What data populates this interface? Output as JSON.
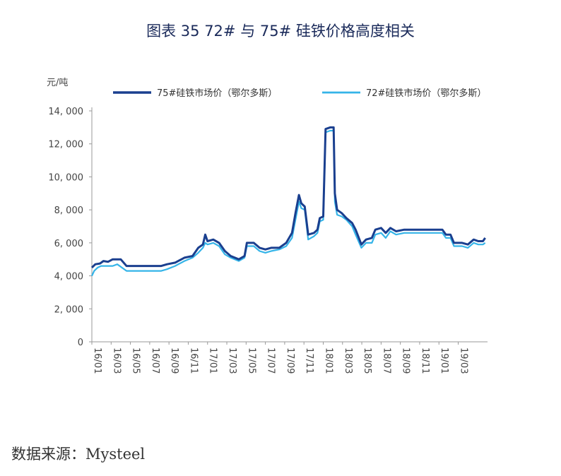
{
  "title": "图表 35   72# 与 75# 硅铁价格高度相关",
  "source": "数据来源：Mysteel",
  "colors": {
    "series_75": "#1a3f8f",
    "series_72": "#35b4e8",
    "axis": "#999999"
  },
  "chart_data": {
    "type": "line",
    "ylabel": "元/吨",
    "ylim": [
      0,
      14000
    ],
    "yticks": [
      0,
      2000,
      4000,
      6000,
      8000,
      10000,
      12000,
      14000
    ],
    "ytick_labels": [
      "0",
      "2, 000",
      "4, 000",
      "6, 000",
      "8, 000",
      "10, 000",
      "12, 000",
      "14, 000"
    ],
    "xtick_labels": [
      "16/01",
      "16/03",
      "16/05",
      "16/07",
      "16/09",
      "16/11",
      "17/01",
      "17/03",
      "17/05",
      "17/07",
      "17/09",
      "17/11",
      "18/01",
      "18/03",
      "18/05",
      "18/07",
      "18/09",
      "18/11",
      "19/01",
      "19/03"
    ],
    "x_range": [
      2016.0,
      2019.42
    ],
    "legend_position": "top",
    "series": [
      {
        "name": "75#硅铁市场价（鄂尔多斯）",
        "points": [
          [
            2016.0,
            4500
          ],
          [
            2016.03,
            4700
          ],
          [
            2016.07,
            4750
          ],
          [
            2016.1,
            4900
          ],
          [
            2016.14,
            4850
          ],
          [
            2016.18,
            5000
          ],
          [
            2016.25,
            5000
          ],
          [
            2016.3,
            4600
          ],
          [
            2016.5,
            4600
          ],
          [
            2016.6,
            4600
          ],
          [
            2016.65,
            4700
          ],
          [
            2016.72,
            4800
          ],
          [
            2016.8,
            5100
          ],
          [
            2016.87,
            5200
          ],
          [
            2016.92,
            5700
          ],
          [
            2016.96,
            5900
          ],
          [
            2016.98,
            6500
          ],
          [
            2017.0,
            6100
          ],
          [
            2017.05,
            6200
          ],
          [
            2017.1,
            6000
          ],
          [
            2017.15,
            5500
          ],
          [
            2017.2,
            5200
          ],
          [
            2017.27,
            5000
          ],
          [
            2017.32,
            5200
          ],
          [
            2017.34,
            6000
          ],
          [
            2017.4,
            6000
          ],
          [
            2017.45,
            5700
          ],
          [
            2017.5,
            5600
          ],
          [
            2017.55,
            5700
          ],
          [
            2017.62,
            5700
          ],
          [
            2017.68,
            6000
          ],
          [
            2017.73,
            6600
          ],
          [
            2017.76,
            7800
          ],
          [
            2017.79,
            8900
          ],
          [
            2017.81,
            8400
          ],
          [
            2017.84,
            8200
          ],
          [
            2017.87,
            6500
          ],
          [
            2017.92,
            6600
          ],
          [
            2017.95,
            6800
          ],
          [
            2017.97,
            7500
          ],
          [
            2018.0,
            7600
          ],
          [
            2018.02,
            12900
          ],
          [
            2018.06,
            13000
          ],
          [
            2018.09,
            13000
          ],
          [
            2018.1,
            9000
          ],
          [
            2018.12,
            8000
          ],
          [
            2018.16,
            7800
          ],
          [
            2018.2,
            7500
          ],
          [
            2018.25,
            7200
          ],
          [
            2018.28,
            6800
          ],
          [
            2018.33,
            5900
          ],
          [
            2018.37,
            6200
          ],
          [
            2018.42,
            6300
          ],
          [
            2018.45,
            6800
          ],
          [
            2018.5,
            6900
          ],
          [
            2018.54,
            6600
          ],
          [
            2018.58,
            6900
          ],
          [
            2018.63,
            6700
          ],
          [
            2018.7,
            6800
          ],
          [
            2018.8,
            6800
          ],
          [
            2018.9,
            6800
          ],
          [
            2019.0,
            6800
          ],
          [
            2019.03,
            6800
          ],
          [
            2019.06,
            6500
          ],
          [
            2019.1,
            6500
          ],
          [
            2019.13,
            6000
          ],
          [
            2019.2,
            6000
          ],
          [
            2019.25,
            5900
          ],
          [
            2019.3,
            6200
          ],
          [
            2019.34,
            6100
          ],
          [
            2019.38,
            6100
          ],
          [
            2019.4,
            6300
          ]
        ]
      },
      {
        "name": "72#硅铁市场价（鄂尔多斯）",
        "points": [
          [
            2016.0,
            4000
          ],
          [
            2016.02,
            4300
          ],
          [
            2016.05,
            4500
          ],
          [
            2016.08,
            4600
          ],
          [
            2016.12,
            4600
          ],
          [
            2016.18,
            4600
          ],
          [
            2016.22,
            4700
          ],
          [
            2016.3,
            4300
          ],
          [
            2016.5,
            4300
          ],
          [
            2016.6,
            4300
          ],
          [
            2016.65,
            4400
          ],
          [
            2016.72,
            4600
          ],
          [
            2016.8,
            4900
          ],
          [
            2016.87,
            5100
          ],
          [
            2016.92,
            5400
          ],
          [
            2016.96,
            5700
          ],
          [
            2016.98,
            6000
          ],
          [
            2017.0,
            5900
          ],
          [
            2017.05,
            6000
          ],
          [
            2017.1,
            5800
          ],
          [
            2017.15,
            5300
          ],
          [
            2017.2,
            5100
          ],
          [
            2017.27,
            4900
          ],
          [
            2017.32,
            5100
          ],
          [
            2017.34,
            5800
          ],
          [
            2017.4,
            5800
          ],
          [
            2017.45,
            5500
          ],
          [
            2017.5,
            5400
          ],
          [
            2017.55,
            5500
          ],
          [
            2017.62,
            5600
          ],
          [
            2017.68,
            5800
          ],
          [
            2017.73,
            6300
          ],
          [
            2017.76,
            7400
          ],
          [
            2017.79,
            8500
          ],
          [
            2017.81,
            8100
          ],
          [
            2017.84,
            8000
          ],
          [
            2017.87,
            6200
          ],
          [
            2017.92,
            6400
          ],
          [
            2017.95,
            6600
          ],
          [
            2017.97,
            7300
          ],
          [
            2018.0,
            7400
          ],
          [
            2018.02,
            12700
          ],
          [
            2018.06,
            12800
          ],
          [
            2018.09,
            12800
          ],
          [
            2018.1,
            8500
          ],
          [
            2018.12,
            7700
          ],
          [
            2018.16,
            7600
          ],
          [
            2018.2,
            7400
          ],
          [
            2018.25,
            7000
          ],
          [
            2018.28,
            6500
          ],
          [
            2018.33,
            5700
          ],
          [
            2018.37,
            6000
          ],
          [
            2018.42,
            6000
          ],
          [
            2018.45,
            6500
          ],
          [
            2018.5,
            6600
          ],
          [
            2018.54,
            6300
          ],
          [
            2018.58,
            6700
          ],
          [
            2018.63,
            6500
          ],
          [
            2018.7,
            6600
          ],
          [
            2018.8,
            6600
          ],
          [
            2018.9,
            6600
          ],
          [
            2019.0,
            6600
          ],
          [
            2019.03,
            6600
          ],
          [
            2019.06,
            6300
          ],
          [
            2019.1,
            6300
          ],
          [
            2019.13,
            5800
          ],
          [
            2019.2,
            5800
          ],
          [
            2019.25,
            5700
          ],
          [
            2019.3,
            6000
          ],
          [
            2019.34,
            5900
          ],
          [
            2019.38,
            5900
          ],
          [
            2019.4,
            6000
          ]
        ]
      }
    ]
  }
}
